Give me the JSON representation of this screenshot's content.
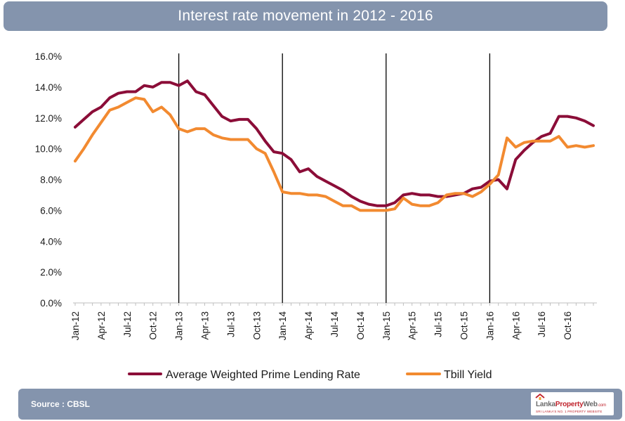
{
  "header": {
    "title": "Interest rate movement  in 2012 - 2016"
  },
  "footer": {
    "source": "Source : CBSL",
    "logo": {
      "part1": "Lanka",
      "part2": "Property",
      "part3": "Web",
      "domain": ".com",
      "tagline": "SRI LANKA'S NO. 1 PROPERTY WEBSITE"
    }
  },
  "colors": {
    "prime": "#8b0d38",
    "tbill": "#f28a30",
    "header_bg": "#8494ad",
    "grid": "#d9d9d9"
  },
  "chart_data": {
    "type": "line",
    "title": "Interest rate movement  in 2012 - 2016",
    "xlabel": "",
    "ylabel": "",
    "ylim": [
      0,
      16
    ],
    "yticks": [
      "0.0%",
      "2.0%",
      "4.0%",
      "6.0%",
      "8.0%",
      "10.0%",
      "12.0%",
      "14.0%",
      "16.0%"
    ],
    "ytick_values": [
      0,
      2,
      4,
      6,
      8,
      10,
      12,
      14,
      16
    ],
    "x_tick_labels": [
      "Jan-12",
      "Apr-12",
      "Jul-12",
      "Oct-12",
      "Jan-13",
      "Apr-13",
      "Jul-13",
      "Oct-13",
      "Jan-14",
      "Apr-14",
      "Jul-14",
      "Oct-14",
      "Jan-15",
      "Apr-15",
      "Jul-15",
      "Oct-15",
      "Jan-16",
      "Apr-16",
      "Jul-16",
      "Oct-16"
    ],
    "x_tick_indices": [
      0,
      3,
      6,
      9,
      12,
      15,
      18,
      21,
      24,
      27,
      30,
      33,
      36,
      39,
      42,
      45,
      48,
      51,
      54,
      57
    ],
    "period_markers": [
      "Jan-13",
      "Jan-14",
      "Jan-15",
      "Jan-16"
    ],
    "period_marker_indices": [
      12,
      24,
      36,
      48
    ],
    "grid": false,
    "legend_position": "bottom",
    "series": [
      {
        "name": "Average Weighted Prime Lending Rate",
        "color": "#8b0d38",
        "values": [
          11.4,
          11.9,
          12.4,
          12.7,
          13.3,
          13.6,
          13.7,
          13.7,
          14.1,
          14.0,
          14.3,
          14.3,
          14.1,
          14.4,
          13.7,
          13.5,
          12.8,
          12.1,
          11.8,
          11.9,
          11.9,
          11.3,
          10.5,
          9.8,
          9.7,
          9.3,
          8.5,
          8.7,
          8.2,
          7.9,
          7.6,
          7.3,
          6.9,
          6.6,
          6.4,
          6.3,
          6.3,
          6.5,
          7.0,
          7.1,
          7.0,
          7.0,
          6.9,
          6.9,
          7.0,
          7.1,
          7.4,
          7.5,
          7.9,
          8.0,
          7.4,
          9.3,
          9.9,
          10.4,
          10.8,
          11.0,
          12.1,
          12.1,
          12.0,
          11.8,
          11.5
        ]
      },
      {
        "name": "Tbill Yield",
        "color": "#f28a30",
        "values": [
          9.2,
          10.0,
          10.9,
          11.7,
          12.5,
          12.7,
          13.0,
          13.3,
          13.2,
          12.4,
          12.7,
          12.2,
          11.3,
          11.1,
          11.3,
          11.3,
          10.9,
          10.7,
          10.6,
          10.6,
          10.6,
          10.0,
          9.7,
          8.5,
          7.2,
          7.1,
          7.1,
          7.0,
          7.0,
          6.9,
          6.6,
          6.3,
          6.3,
          6.0,
          6.0,
          6.0,
          6.0,
          6.1,
          6.8,
          6.4,
          6.3,
          6.3,
          6.5,
          7.0,
          7.1,
          7.1,
          6.9,
          7.2,
          7.7,
          8.3,
          10.7,
          10.1,
          10.4,
          10.5,
          10.5,
          10.5,
          10.8,
          10.1,
          10.2,
          10.1,
          10.2
        ]
      }
    ]
  }
}
